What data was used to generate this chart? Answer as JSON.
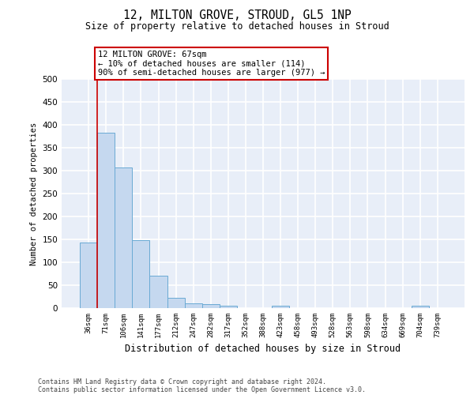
{
  "title_line1": "12, MILTON GROVE, STROUD, GL5 1NP",
  "title_line2": "Size of property relative to detached houses in Stroud",
  "xlabel": "Distribution of detached houses by size in Stroud",
  "ylabel": "Number of detached properties",
  "categories": [
    "36sqm",
    "71sqm",
    "106sqm",
    "141sqm",
    "177sqm",
    "212sqm",
    "247sqm",
    "282sqm",
    "317sqm",
    "352sqm",
    "388sqm",
    "423sqm",
    "458sqm",
    "493sqm",
    "528sqm",
    "563sqm",
    "598sqm",
    "634sqm",
    "669sqm",
    "704sqm",
    "739sqm"
  ],
  "values": [
    143,
    383,
    307,
    149,
    70,
    22,
    11,
    9,
    5,
    0,
    0,
    5,
    0,
    0,
    0,
    0,
    0,
    0,
    0,
    5,
    0
  ],
  "bar_color": "#c5d8ef",
  "bar_edge_color": "#6aaad4",
  "annotation_line1": "12 MILTON GROVE: 67sqm",
  "annotation_line2": "← 10% of detached houses are smaller (114)",
  "annotation_line3": "90% of semi-detached houses are larger (977) →",
  "ylim": [
    0,
    500
  ],
  "yticks": [
    0,
    50,
    100,
    150,
    200,
    250,
    300,
    350,
    400,
    450,
    500
  ],
  "footer_line1": "Contains HM Land Registry data © Crown copyright and database right 2024.",
  "footer_line2": "Contains public sector information licensed under the Open Government Licence v3.0.",
  "bg_color": "#e8eef8",
  "grid_color": "#ffffff",
  "red_line_color": "#cc0000",
  "annotation_edge_color": "#cc0000",
  "annotation_bg_color": "#ffffff"
}
